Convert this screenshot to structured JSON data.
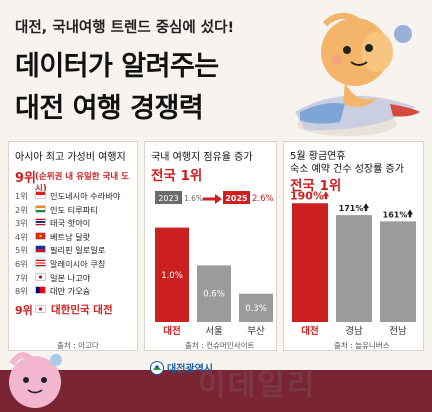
{
  "header": {
    "subtitle": "대전, 국내여행 트렌드 중심에 섰다!",
    "title_line1": "데이터가 알려주는",
    "title_line2": "대전 여행 경쟁력"
  },
  "panel1": {
    "title": "아시아 최고 가성비 여행지",
    "rank_big": "9위",
    "rank_note": "(순위권 내 유일한 국내 도시)",
    "items": [
      {
        "rank": "1위",
        "name": "인도네시아 수라바야",
        "flag": "indonesia"
      },
      {
        "rank": "2위",
        "name": "인도 티루파티",
        "flag": "india"
      },
      {
        "rank": "3위",
        "name": "태국 핫야이",
        "flag": "thailand"
      },
      {
        "rank": "4위",
        "name": "베트남 달랏",
        "flag": "vietnam"
      },
      {
        "rank": "5위",
        "name": "필리핀 일로일로",
        "flag": "philippines"
      },
      {
        "rank": "6위",
        "name": "말레이시아 쿠칭",
        "flag": "malaysia"
      },
      {
        "rank": "7위",
        "name": "일본 나고야",
        "flag": "japan"
      },
      {
        "rank": "8위",
        "name": "대만 가오슝",
        "flag": "taiwan"
      },
      {
        "rank": "9위",
        "name": "대한민국 대전",
        "flag": "korea"
      }
    ],
    "source": "출처 : 아고다"
  },
  "panel2": {
    "title": "국내 여행지 점유율 증가",
    "headline": "전국 1위",
    "source": "출처 : 컨슈머인사이트",
    "chart_data": {
      "type": "bar",
      "trend": {
        "from_year": "2023",
        "from_value": "1.6%",
        "to_year": "2025",
        "to_value": "2.6%"
      },
      "categories": [
        "대전",
        "서울",
        "부산"
      ],
      "values": [
        1.0,
        0.6,
        0.3
      ],
      "value_labels": [
        "1.0%",
        "0.6%",
        "0.3%"
      ],
      "ylim": [
        0,
        1.25
      ],
      "highlight": "대전",
      "colors": {
        "highlight": "#cc1f1f",
        "other": "#9b9b9b",
        "accent": "#d01e1e"
      }
    }
  },
  "panel3": {
    "title_line1": "5월 황금연휴",
    "title_line2": "숙소 예약 건수 성장률 증가",
    "headline": "전국 1위",
    "source": "출처 : 놀유니버스",
    "chart_data": {
      "type": "bar",
      "categories": [
        "대전",
        "경남",
        "전남"
      ],
      "values": [
        190,
        171,
        161
      ],
      "value_labels": [
        "190%",
        "171%",
        "161%"
      ],
      "ylim": [
        0,
        200
      ],
      "highlight": "대전",
      "colors": {
        "highlight": "#cc1f1f",
        "other": "#9b9b9b",
        "accent": "#d01e1e"
      }
    }
  },
  "footer": {
    "logo_text": "대전광역시",
    "watermark": "이데일리"
  }
}
